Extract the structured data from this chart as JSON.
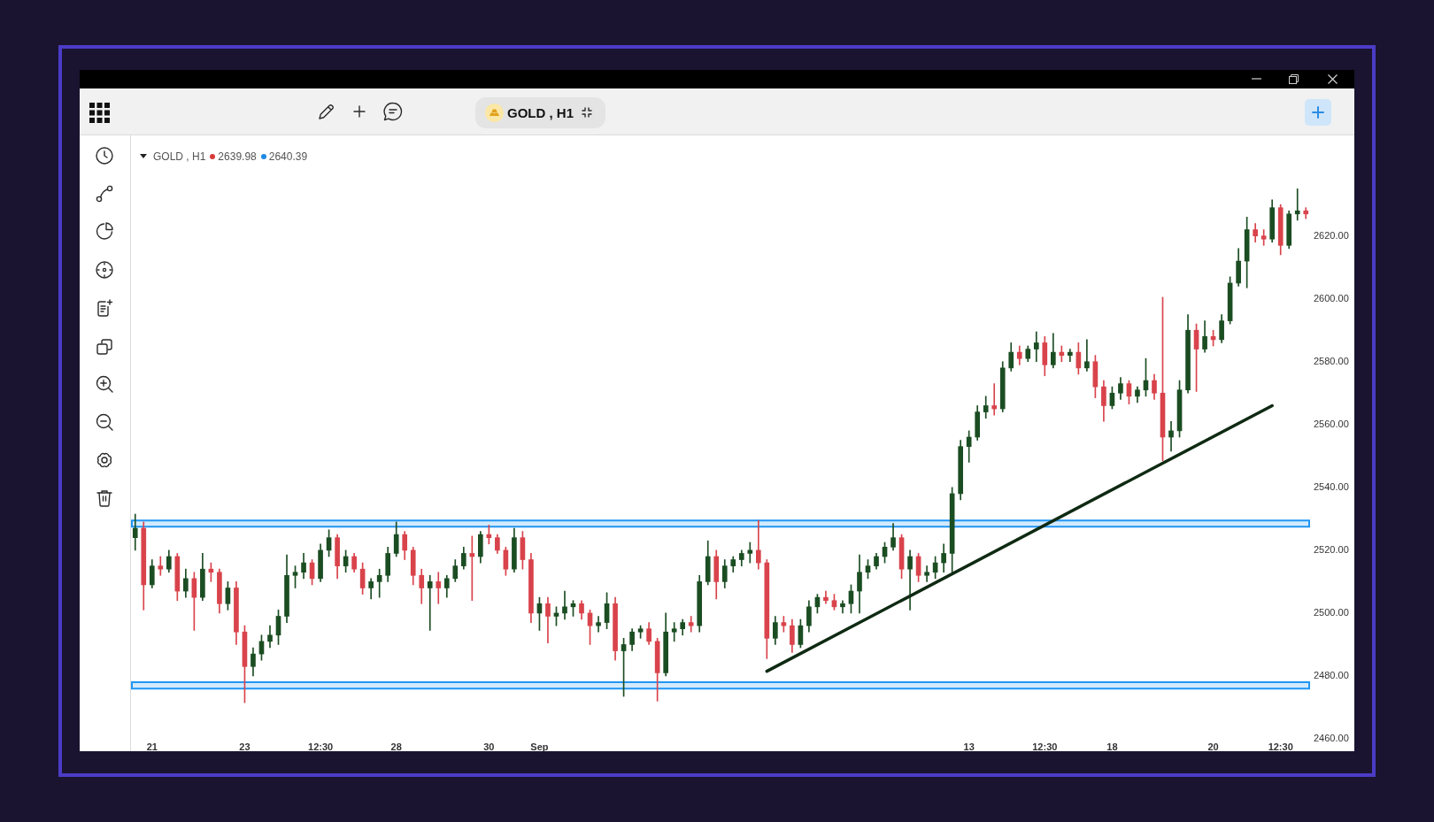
{
  "chart_data": {
    "type": "candlestick",
    "title": "GOLD , H1",
    "annotations": [
      "2639.98",
      "2640.39"
    ],
    "categories": [
      null,
      null,
      "21",
      null,
      null,
      null,
      null,
      null,
      null,
      null,
      null,
      null,
      null,
      "23",
      null,
      null,
      null,
      null,
      null,
      null,
      null,
      null,
      "12:30",
      null,
      null,
      null,
      null,
      null,
      null,
      null,
      null,
      "28",
      null,
      null,
      null,
      null,
      null,
      null,
      null,
      null,
      null,
      null,
      "30",
      null,
      null,
      null,
      null,
      null,
      "Sep",
      null,
      null,
      null,
      null,
      null,
      null,
      null,
      null,
      null,
      null,
      null,
      null,
      null,
      null,
      null,
      null,
      null,
      null,
      null,
      null,
      null,
      null,
      null,
      null,
      null,
      null,
      null,
      null,
      null,
      null,
      null,
      null,
      null,
      null,
      null,
      null,
      null,
      null,
      null,
      null,
      null,
      null,
      null,
      null,
      null,
      null,
      null,
      null,
      null,
      null,
      "13",
      null,
      null,
      null,
      null,
      null,
      null,
      null,
      null,
      "12:30",
      null,
      null,
      null,
      null,
      null,
      null,
      null,
      "18",
      null,
      null,
      null,
      null,
      null,
      null,
      null,
      null,
      null,
      null,
      null,
      "20",
      null,
      null,
      null,
      null,
      null,
      null,
      null,
      "12:30",
      null,
      null,
      null
    ],
    "ohlc": [
      [
        2524,
        2531.5,
        2520,
        2527
      ],
      [
        2527,
        2529,
        2501,
        2509
      ],
      [
        2509,
        2517,
        2508,
        2515
      ],
      [
        2515,
        2518,
        2512,
        2514
      ],
      [
        2514,
        2520,
        2513,
        2518
      ],
      [
        2518,
        2519,
        2504,
        2507
      ],
      [
        2507,
        2514,
        2505,
        2511
      ],
      [
        2511,
        2513,
        2494.5,
        2505
      ],
      [
        2505,
        2519,
        2504,
        2514
      ],
      [
        2514,
        2516,
        2510,
        2513
      ],
      [
        2513,
        2514,
        2500,
        2503
      ],
      [
        2503,
        2510,
        2501,
        2508
      ],
      [
        2508,
        2510,
        2490,
        2494
      ],
      [
        2494,
        2496,
        2471.5,
        2483
      ],
      [
        2483,
        2489,
        2480,
        2487
      ],
      [
        2487,
        2493,
        2485,
        2491
      ],
      [
        2491,
        2496,
        2489,
        2493
      ],
      [
        2493,
        2501,
        2490,
        2499
      ],
      [
        2499,
        2518.5,
        2497,
        2512
      ],
      [
        2512,
        2515,
        2508,
        2513
      ],
      [
        2513,
        2519,
        2511,
        2516
      ],
      [
        2516,
        2517,
        2509,
        2511
      ],
      [
        2511,
        2522,
        2510,
        2520
      ],
      [
        2520,
        2526.5,
        2518,
        2524
      ],
      [
        2524,
        2525,
        2511,
        2515
      ],
      [
        2515,
        2520,
        2513,
        2518
      ],
      [
        2518,
        2519,
        2513,
        2514
      ],
      [
        2514,
        2516,
        2506,
        2508
      ],
      [
        2508,
        2511,
        2504.5,
        2510
      ],
      [
        2510,
        2514,
        2505,
        2512
      ],
      [
        2512,
        2521,
        2510,
        2519
      ],
      [
        2519,
        2529,
        2518,
        2525
      ],
      [
        2525,
        2526,
        2517,
        2520
      ],
      [
        2520,
        2521,
        2509,
        2512
      ],
      [
        2512,
        2514,
        2503,
        2508
      ],
      [
        2508,
        2512,
        2494.5,
        2510
      ],
      [
        2510,
        2513,
        2503,
        2508
      ],
      [
        2508,
        2512,
        2505,
        2511
      ],
      [
        2511,
        2517,
        2510,
        2515
      ],
      [
        2515,
        2521,
        2514,
        2519
      ],
      [
        2519,
        2524.5,
        2504,
        2518
      ],
      [
        2518,
        2526,
        2516,
        2525
      ],
      [
        2525,
        2528,
        2522,
        2524
      ],
      [
        2524,
        2525,
        2519,
        2520
      ],
      [
        2520,
        2521,
        2512,
        2514
      ],
      [
        2514,
        2527,
        2513,
        2524
      ],
      [
        2524,
        2526,
        2514,
        2517
      ],
      [
        2517,
        2519,
        2497,
        2500
      ],
      [
        2500,
        2505,
        2494.5,
        2503
      ],
      [
        2503,
        2505,
        2490.5,
        2499
      ],
      [
        2499,
        2502,
        2496,
        2500
      ],
      [
        2500,
        2507,
        2498,
        2502
      ],
      [
        2502,
        2504,
        2499,
        2503
      ],
      [
        2503,
        2504,
        2498,
        2500
      ],
      [
        2500,
        2501,
        2490,
        2496
      ],
      [
        2496,
        2499,
        2494,
        2497
      ],
      [
        2497,
        2506.5,
        2495,
        2503
      ],
      [
        2503,
        2505,
        2485,
        2488
      ],
      [
        2488,
        2492,
        2473.5,
        2490
      ],
      [
        2490,
        2495,
        2488,
        2494
      ],
      [
        2494,
        2496,
        2492,
        2495
      ],
      [
        2495,
        2497,
        2490,
        2491
      ],
      [
        2491,
        2492,
        2472,
        2481
      ],
      [
        2481,
        2500,
        2480,
        2494
      ],
      [
        2494,
        2497,
        2491,
        2495
      ],
      [
        2495,
        2498,
        2493,
        2497
      ],
      [
        2497,
        2499,
        2494,
        2496
      ],
      [
        2496,
        2512,
        2494,
        2510
      ],
      [
        2510,
        2523,
        2509,
        2518
      ],
      [
        2518,
        2520,
        2504.5,
        2510
      ],
      [
        2510,
        2517,
        2508,
        2515
      ],
      [
        2515,
        2518,
        2513,
        2517
      ],
      [
        2517,
        2520,
        2515,
        2519
      ],
      [
        2519,
        2522.5,
        2516,
        2520
      ],
      [
        2520,
        2529.5,
        2514,
        2516
      ],
      [
        2516,
        2517,
        2485.5,
        2492
      ],
      [
        2492,
        2499,
        2490,
        2497
      ],
      [
        2497,
        2499,
        2494,
        2496
      ],
      [
        2496,
        2498,
        2487.5,
        2490
      ],
      [
        2490,
        2498,
        2489,
        2496
      ],
      [
        2496,
        2504,
        2494,
        2502
      ],
      [
        2502,
        2506,
        2500,
        2505
      ],
      [
        2505,
        2507,
        2503,
        2504
      ],
      [
        2504,
        2506,
        2501,
        2502
      ],
      [
        2502,
        2504,
        2500,
        2503
      ],
      [
        2503,
        2509,
        2500,
        2507
      ],
      [
        2507,
        2518.5,
        2500,
        2513
      ],
      [
        2513,
        2517,
        2511,
        2515
      ],
      [
        2515,
        2519,
        2514,
        2518
      ],
      [
        2518,
        2522.5,
        2516,
        2521
      ],
      [
        2521,
        2528.5,
        2520,
        2524
      ],
      [
        2524,
        2525,
        2511,
        2514
      ],
      [
        2514,
        2520,
        2501,
        2518
      ],
      [
        2518,
        2519,
        2510,
        2512
      ],
      [
        2512,
        2515,
        2510,
        2513
      ],
      [
        2513,
        2518,
        2511,
        2516
      ],
      [
        2516,
        2522,
        2513,
        2519
      ],
      [
        2519,
        2540,
        2513,
        2538
      ],
      [
        2538,
        2555,
        2536,
        2553
      ],
      [
        2553,
        2558,
        2548,
        2556
      ],
      [
        2556,
        2566,
        2555,
        2564
      ],
      [
        2564,
        2569,
        2562,
        2566
      ],
      [
        2566,
        2573,
        2563,
        2565
      ],
      [
        2565,
        2580,
        2564,
        2578
      ],
      [
        2578,
        2586,
        2577,
        2583
      ],
      [
        2583,
        2585,
        2579,
        2581
      ],
      [
        2581,
        2585,
        2580,
        2584
      ],
      [
        2584,
        2589.5,
        2580,
        2586
      ],
      [
        2586,
        2588,
        2575.5,
        2579
      ],
      [
        2579,
        2589,
        2578,
        2583
      ],
      [
        2583,
        2585,
        2580,
        2582
      ],
      [
        2582,
        2584,
        2580,
        2583
      ],
      [
        2583,
        2586,
        2576,
        2578
      ],
      [
        2578,
        2587,
        2577,
        2580
      ],
      [
        2580,
        2582,
        2568.5,
        2572
      ],
      [
        2572,
        2574,
        2561,
        2566
      ],
      [
        2566,
        2572,
        2565,
        2570
      ],
      [
        2570,
        2575,
        2568,
        2573
      ],
      [
        2573,
        2574,
        2566.5,
        2569
      ],
      [
        2569,
        2572,
        2567,
        2571
      ],
      [
        2571,
        2581,
        2569,
        2574
      ],
      [
        2574,
        2576,
        2568,
        2570
      ],
      [
        2570,
        2600.5,
        2548.5,
        2556
      ],
      [
        2556,
        2561,
        2551.5,
        2558
      ],
      [
        2558,
        2574,
        2556,
        2571
      ],
      [
        2571,
        2595,
        2570,
        2590
      ],
      [
        2590,
        2592,
        2570.5,
        2584
      ],
      [
        2584,
        2593,
        2583,
        2588
      ],
      [
        2588,
        2590,
        2585,
        2587
      ],
      [
        2587,
        2595,
        2586,
        2593
      ],
      [
        2593,
        2607,
        2592,
        2605
      ],
      [
        2605,
        2616,
        2604,
        2612
      ],
      [
        2612,
        2626,
        2603.5,
        2622
      ],
      [
        2622,
        2624,
        2618,
        2620
      ],
      [
        2620,
        2622,
        2617,
        2619
      ],
      [
        2619,
        2631.5,
        2618,
        2629
      ],
      [
        2629,
        2630,
        2614,
        2617
      ],
      [
        2617,
        2628,
        2616,
        2627
      ],
      [
        2627,
        2635,
        2625,
        2628
      ],
      [
        2628,
        2629,
        2625.5,
        2627
      ]
    ],
    "colors": [
      "#1b4d22",
      "#d9434b",
      "#1b4d22",
      "#d9434b",
      "#1b4d22",
      "#d9434b",
      "#1b4d22",
      "#d9434b",
      "#1b4d22",
      "#d9434b",
      "#d9434b",
      "#1b4d22",
      "#d9434b",
      "#d9434b",
      "#1b4d22",
      "#1b4d22",
      "#1b4d22",
      "#1b4d22",
      "#1b4d22",
      "#1b4d22",
      "#1b4d22",
      "#d9434b",
      "#1b4d22",
      "#1b4d22",
      "#d9434b",
      "#1b4d22",
      "#d9434b",
      "#d9434b",
      "#1b4d22",
      "#1b4d22",
      "#1b4d22",
      "#1b4d22",
      "#d9434b",
      "#d9434b",
      "#d9434b",
      "#1b4d22",
      "#d9434b",
      "#1b4d22",
      "#1b4d22",
      "#1b4d22",
      "#d9434b",
      "#1b4d22",
      "#d9434b",
      "#d9434b",
      "#d9434b",
      "#1b4d22",
      "#d9434b",
      "#d9434b",
      "#1b4d22",
      "#d9434b",
      "#1b4d22",
      "#1b4d22",
      "#1b4d22",
      "#d9434b",
      "#d9434b",
      "#1b4d22",
      "#1b4d22",
      "#d9434b",
      "#1b4d22",
      "#1b4d22",
      "#1b4d22",
      "#d9434b",
      "#d9434b",
      "#1b4d22",
      "#1b4d22",
      "#1b4d22",
      "#d9434b",
      "#1b4d22",
      "#1b4d22",
      "#d9434b",
      "#1b4d22",
      "#1b4d22",
      "#1b4d22",
      "#1b4d22",
      "#d9434b",
      "#d9434b",
      "#1b4d22",
      "#d9434b",
      "#d9434b",
      "#1b4d22",
      "#1b4d22",
      "#1b4d22",
      "#d9434b",
      "#d9434b",
      "#1b4d22",
      "#1b4d22",
      "#1b4d22",
      "#1b4d22",
      "#1b4d22",
      "#1b4d22",
      "#1b4d22",
      "#d9434b",
      "#1b4d22",
      "#d9434b",
      "#1b4d22",
      "#1b4d22",
      "#1b4d22",
      "#1b4d22",
      "#1b4d22",
      "#1b4d22",
      "#1b4d22",
      "#1b4d22",
      "#d9434b",
      "#1b4d22",
      "#1b4d22",
      "#d9434b",
      "#1b4d22",
      "#1b4d22",
      "#d9434b",
      "#1b4d22",
      "#d9434b",
      "#1b4d22",
      "#d9434b",
      "#1b4d22",
      "#d9434b",
      "#d9434b",
      "#1b4d22",
      "#1b4d22",
      "#d9434b",
      "#1b4d22",
      "#1b4d22",
      "#d9434b",
      "#d9434b",
      "#1b4d22",
      "#1b4d22",
      "#1b4d22",
      "#d9434b",
      "#1b4d22",
      "#d9434b",
      "#1b4d22",
      "#1b4d22",
      "#1b4d22",
      "#1b4d22",
      "#d9434b",
      "#d9434b",
      "#1b4d22",
      "#d9434b",
      "#1b4d22",
      "#1b4d22",
      "#d9434b"
    ],
    "series": [
      {
        "type": "line",
        "color": "#0f2a13",
        "values": [
          null,
          null,
          null,
          null,
          null,
          null,
          null,
          null,
          null,
          null,
          null,
          null,
          null,
          null,
          null,
          null,
          null,
          null,
          null,
          null,
          null,
          null,
          null,
          null,
          null,
          null,
          null,
          null,
          null,
          null,
          null,
          null,
          null,
          null,
          null,
          null,
          null,
          null,
          null,
          null,
          null,
          null,
          null,
          null,
          null,
          null,
          null,
          null,
          null,
          null,
          null,
          null,
          null,
          null,
          null,
          null,
          null,
          null,
          null,
          null,
          null,
          null,
          null,
          null,
          null,
          null,
          null,
          null,
          null,
          null,
          null,
          null,
          null,
          null,
          null,
          2481.5,
          null,
          null,
          null,
          null,
          null,
          null,
          null,
          null,
          null,
          null,
          null,
          null,
          null,
          null,
          null,
          null,
          null,
          null,
          null,
          null,
          null,
          null,
          null,
          null,
          null,
          null,
          null,
          null,
          null,
          null,
          null,
          null,
          null,
          null,
          null,
          null,
          null,
          null,
          null,
          null,
          null,
          null,
          null,
          null,
          null,
          null,
          null,
          null,
          null,
          null,
          null,
          null,
          null,
          null,
          null,
          null,
          null,
          null,
          null,
          2566,
          null,
          null,
          null,
          null
        ]
      }
    ],
    "bands": [
      {
        "axis": "y",
        "from": 2527.5,
        "to": 2529.5,
        "color": "#2196f3"
      },
      {
        "axis": "y",
        "from": 2476,
        "to": 2478,
        "color": "#2196f3"
      }
    ],
    "ylim": [
      2460,
      2652
    ],
    "yticks": [
      {
        "value": 2460,
        "label": "2460.00"
      },
      {
        "value": 2480,
        "label": "2480.00"
      },
      {
        "value": 2500,
        "label": "2500.00"
      },
      {
        "value": 2520,
        "label": "2520.00"
      },
      {
        "value": 2540,
        "label": "2540.00"
      },
      {
        "value": 2560,
        "label": "2560.00"
      },
      {
        "value": 2580,
        "label": "2580.00"
      },
      {
        "value": 2600,
        "label": "2600.00"
      },
      {
        "value": 2620,
        "label": "2620.00"
      }
    ]
  }
}
